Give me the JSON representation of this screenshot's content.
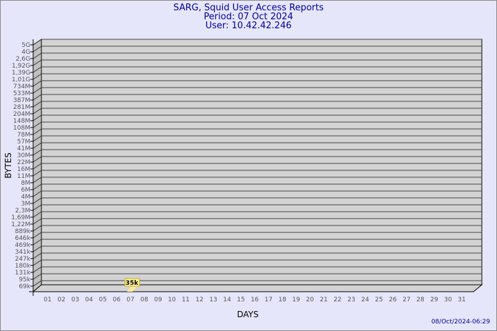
{
  "header": {
    "title": "SARG, Squid User Access Reports",
    "period": "Period: 07 Oct 2024",
    "user": "User: 10.42.42.246"
  },
  "footer": {
    "timestamp": "08/Oct/2024-06:29"
  },
  "chart_data": {
    "type": "bar",
    "xlabel": "DAYS",
    "ylabel": "BYTES",
    "y_scale": "log",
    "y_tick_labels": [
      "5G",
      "4G",
      "2,6G",
      "1,92G",
      "1,39G",
      "1,01G",
      "734M",
      "533M",
      "387M",
      "281M",
      "204M",
      "148M",
      "108M",
      "78M",
      "57M",
      "41M",
      "30M",
      "22M",
      "16M",
      "11M",
      "8M",
      "6M",
      "4M",
      "3M",
      "2,3M",
      "1,69M",
      "1,22M",
      "889k",
      "646k",
      "469k",
      "341k",
      "247k",
      "180k",
      "131k",
      "95k",
      "69k"
    ],
    "categories": [
      "01",
      "02",
      "03",
      "04",
      "05",
      "06",
      "07",
      "08",
      "09",
      "10",
      "11",
      "12",
      "13",
      "14",
      "15",
      "16",
      "17",
      "18",
      "19",
      "20",
      "21",
      "22",
      "23",
      "24",
      "25",
      "26",
      "27",
      "28",
      "29",
      "30",
      "31"
    ],
    "bars": [
      {
        "day": "07",
        "value": "35k"
      }
    ],
    "grid": true,
    "colors": {
      "plot": "#d3d3d3",
      "wall": "#c0c0c0",
      "bar": "#ffe99a",
      "label_bg": "#fff3a8",
      "text": "#00008b",
      "ticks": "#555555"
    }
  }
}
